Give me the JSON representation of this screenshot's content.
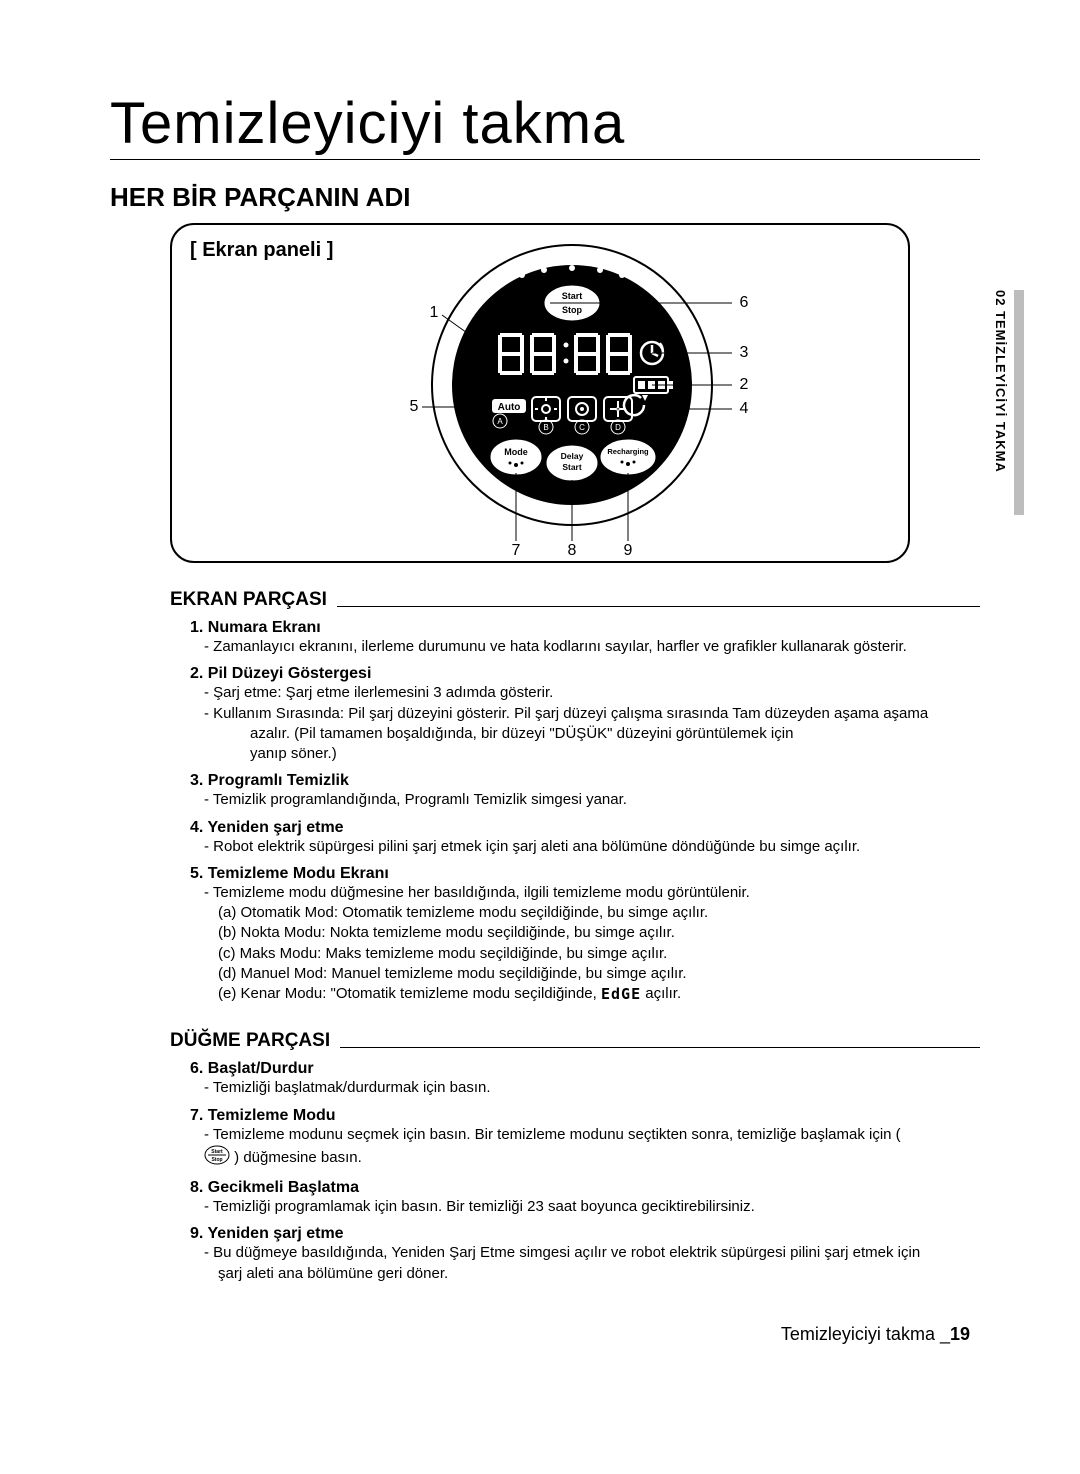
{
  "page_title": "Temizleyiciyi takma",
  "section_heading": "HER BİR PARÇANIN ADI",
  "panel_label": "[ Ekran paneli ]",
  "side_tab": "02  TEMİZLEYİCİYİ TAKMA",
  "diagram": {
    "start_stop_top": "Start",
    "start_stop_bottom": "Stop",
    "btn_mode": "Mode",
    "btn_delay": "Delay\nStart",
    "btn_recharge": "Recharging",
    "auto_label": "Auto",
    "mode_letters": [
      "A",
      "B",
      "C",
      "D"
    ],
    "callouts": [
      "1",
      "2",
      "3",
      "4",
      "5",
      "6",
      "7",
      "8",
      "9"
    ],
    "edge_text": "EdGE"
  },
  "ekran_heading": "EKRAN PARÇASI",
  "ekran_items": [
    {
      "title": "1. Numara Ekranı",
      "lines": [
        "- Zamanlayıcı ekranını, ilerleme durumunu ve hata kodlarını sayılar, harfler ve grafikler kullanarak gösterir."
      ]
    },
    {
      "title": "2. Pil Düzeyi Göstergesi",
      "lines": [
        "- Şarj etme: Şarj etme ilerlemesini 3 adımda gösterir.",
        "- Kullanım Sırasında: Pil şarj düzeyini gösterir. Pil şarj düzeyi çalışma sırasında Tam düzeyden aşama aşama",
        "__azalır. (Pil tamamen boşaldığında, bir düzeyi \"DÜŞÜK\" düzeyini görüntülemek için",
        "__yanıp söner.)"
      ]
    },
    {
      "title": "3. Programlı Temizlik",
      "lines": [
        "- Temizlik programlandığında, Programlı Temizlik simgesi yanar."
      ]
    },
    {
      "title": "4. Yeniden şarj etme",
      "lines": [
        "- Robot elektrik süpürgesi pilini şarj etmek için şarj aleti ana bölümüne döndüğünde bu simge açılır."
      ]
    },
    {
      "title": "5. Temizleme Modu Ekranı",
      "lines": [
        "- Temizleme modu düğmesine her basıldığında, ilgili temizleme modu görüntülenir.",
        "_(a) Otomatik Mod: Otomatik temizleme modu seçildiğinde, bu simge açılır.",
        "_(b) Nokta Modu: Nokta temizleme modu seçildiğinde, bu simge açılır.",
        "_(c) Maks Modu: Maks temizleme modu seçildiğinde, bu simge açılır.",
        "_(d) Manuel Mod: Manuel temizleme modu seçildiğinde, bu simge açılır.",
        "_(e) Kenar Modu: \"Otomatik temizleme modu seçildiğinde, @@EDGE@@ açılır."
      ]
    }
  ],
  "dugme_heading": "DÜĞME PARÇASI",
  "dugme_items": [
    {
      "title": "6. Başlat/Durdur",
      "lines": [
        "- Temizliği başlatmak/durdurmak için basın."
      ]
    },
    {
      "title": "7. Temizleme Modu",
      "lines": [
        "- Temizleme modunu seçmek için basın. Bir temizleme modunu seçtikten sonra, temizliğe başlamak için (",
        "@@SSICON@@ ) düğmesine basın."
      ]
    },
    {
      "title": "8. Gecikmeli Başlatma",
      "lines": [
        "- Temizliği programlamak için basın. Bir temizliği 23 saat boyunca geciktirebilirsiniz."
      ]
    },
    {
      "title": "9. Yeniden şarj etme",
      "lines": [
        "- Bu düğmeye basıldığında, Yeniden Şarj Etme simgesi açılır ve robot elektrik süpürgesi pilini şarj etmek için",
        "_şarj aleti ana bölümüne geri döner."
      ]
    }
  ],
  "footer_text": "Temizleyiciyi takma _",
  "footer_page": "19"
}
